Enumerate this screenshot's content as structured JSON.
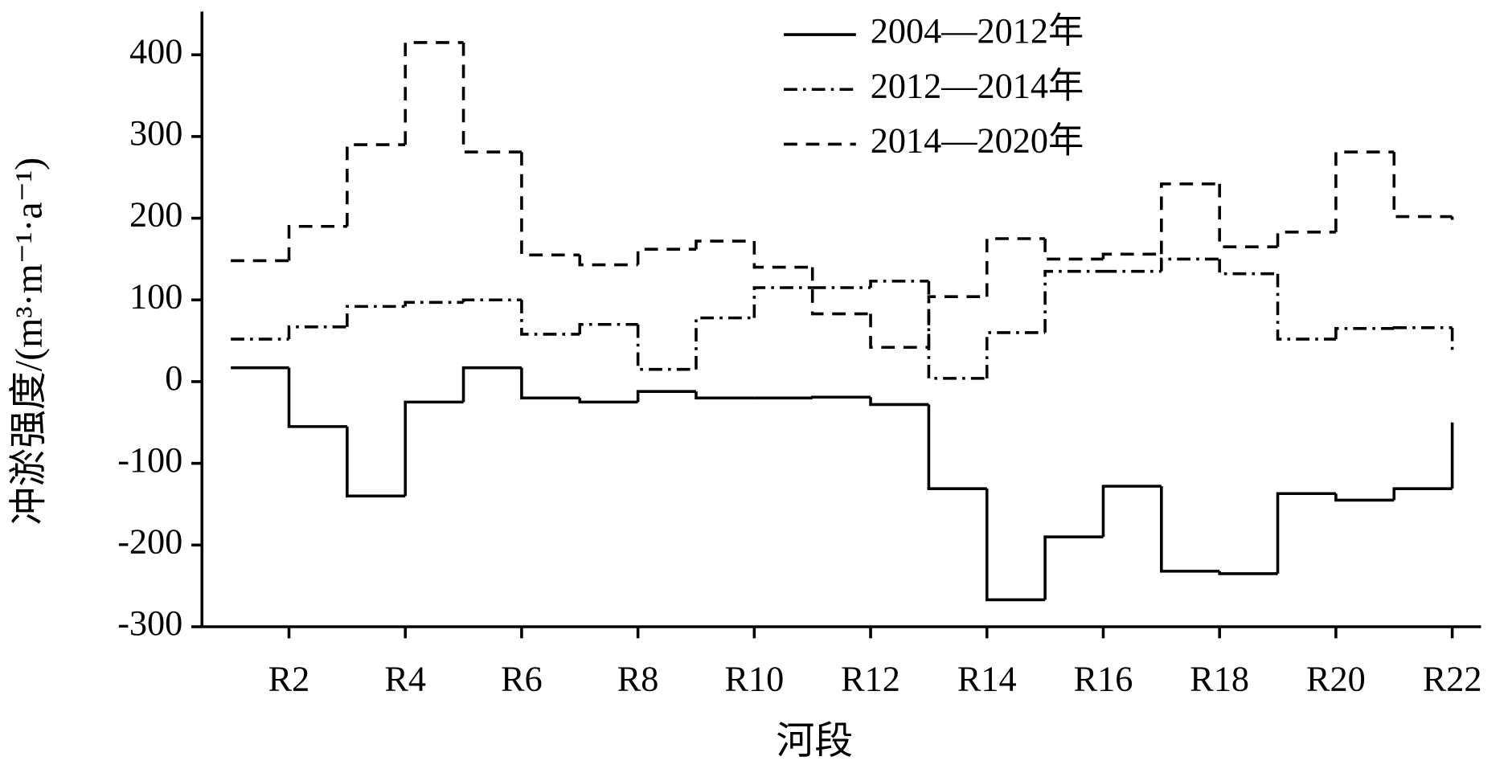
{
  "chart_data": {
    "type": "step",
    "x_label": "河段",
    "y_label": "冲淤强度/(m³·m⁻¹·a⁻¹)",
    "categories": [
      null,
      "R2",
      null,
      "R4",
      null,
      "R6",
      null,
      "R8",
      null,
      "R10",
      null,
      "R12",
      null,
      "R14",
      null,
      "R16",
      null,
      "R18",
      null,
      "R20",
      null,
      "R22"
    ],
    "ylim": [
      -300,
      400
    ],
    "yticks": [
      -300,
      -200,
      -100,
      0,
      100,
      200,
      300,
      400
    ],
    "legend": "upper-center",
    "series": [
      {
        "name": "2004—2012年",
        "color": "#000000",
        "dash": "solid",
        "values": [
          17,
          -55,
          -140,
          -25,
          17,
          -20,
          -25,
          -12,
          -20,
          -20,
          -19,
          -28,
          -131,
          -267,
          -190,
          -128,
          -232,
          -235,
          -137,
          -145,
          -131,
          -50
        ]
      },
      {
        "name": "2012—2014年",
        "color": "#000000",
        "dash": "dashdot",
        "values": [
          52,
          67,
          92,
          97,
          100,
          58,
          70,
          15,
          78,
          115,
          115,
          123,
          4,
          60,
          135,
          135,
          150,
          132,
          52,
          65,
          66,
          36
        ]
      },
      {
        "name": "2014—2020年",
        "color": "#000000",
        "dash": "dashed",
        "values": [
          148,
          190,
          290,
          415,
          281,
          155,
          143,
          162,
          172,
          140,
          83,
          42,
          104,
          175,
          150,
          156,
          242,
          165,
          183,
          281,
          202,
          198
        ]
      }
    ]
  }
}
